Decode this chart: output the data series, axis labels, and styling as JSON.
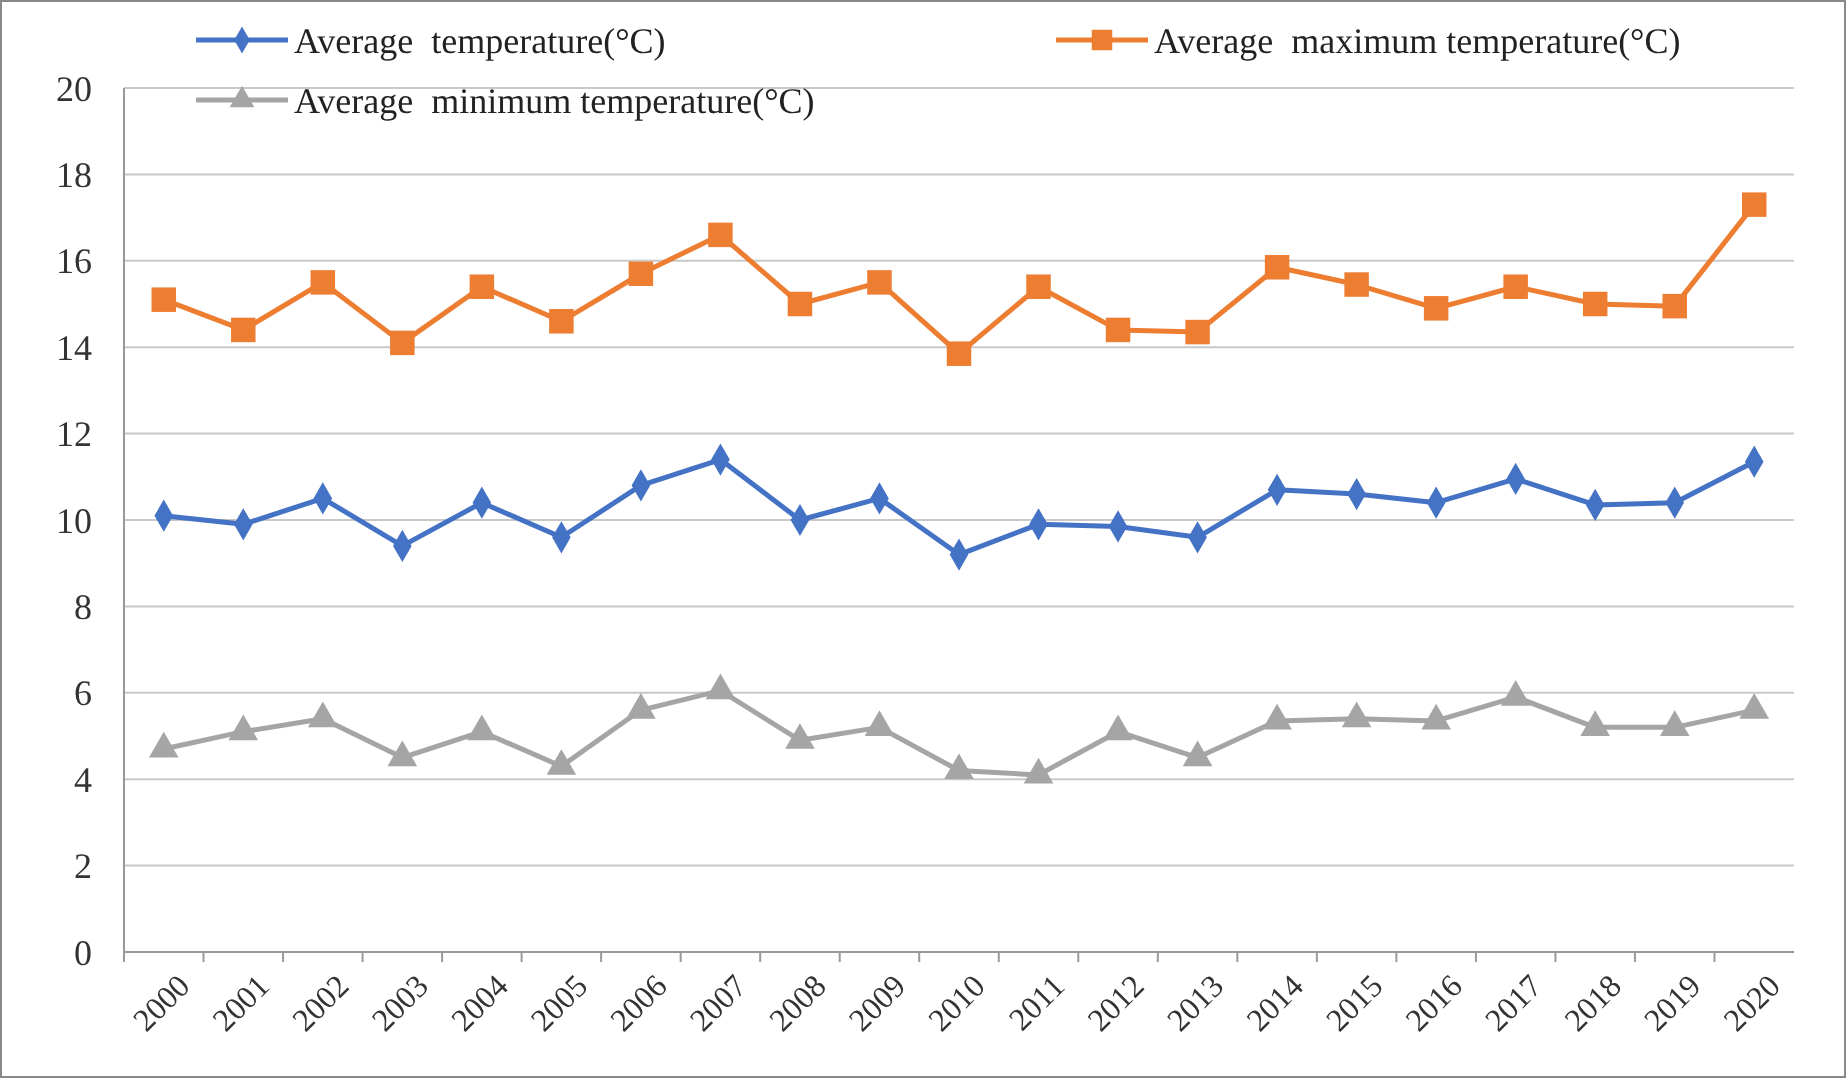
{
  "chart_data": {
    "type": "line",
    "categories": [
      "2000",
      "2001",
      "2002",
      "2003",
      "2004",
      "2005",
      "2006",
      "2007",
      "2008",
      "2009",
      "2010",
      "2011",
      "2012",
      "2013",
      "2014",
      "2015",
      "2016",
      "2017",
      "2018",
      "2019",
      "2020"
    ],
    "series": [
      {
        "name": "Average  temperature(°C)",
        "color": "#4472c4",
        "marker": "diamond",
        "values": [
          10.1,
          9.9,
          10.5,
          9.4,
          10.4,
          9.6,
          10.8,
          11.4,
          10.0,
          10.5,
          9.2,
          9.9,
          9.85,
          9.6,
          10.7,
          10.6,
          10.4,
          10.95,
          10.35,
          10.4,
          11.35
        ]
      },
      {
        "name": "Average  maximum temperature(°C)",
        "color": "#ed7d31",
        "marker": "square",
        "values": [
          15.1,
          14.4,
          15.5,
          14.1,
          15.4,
          14.6,
          15.7,
          16.6,
          15.0,
          15.5,
          13.85,
          15.4,
          14.4,
          14.35,
          15.85,
          15.45,
          14.9,
          15.4,
          15.0,
          14.95,
          17.3
        ]
      },
      {
        "name": "Average  minimum temperature(°C)",
        "color": "#a5a5a5",
        "marker": "triangle",
        "values": [
          4.7,
          5.1,
          5.4,
          4.5,
          5.1,
          4.3,
          5.6,
          6.05,
          4.9,
          5.2,
          4.2,
          4.1,
          5.1,
          4.5,
          5.35,
          5.4,
          5.35,
          5.9,
          5.2,
          5.2,
          5.6
        ]
      }
    ],
    "ylim": [
      0,
      20
    ],
    "yticks": [
      0,
      2,
      4,
      6,
      8,
      10,
      12,
      14,
      16,
      18,
      20
    ],
    "grid": "y",
    "legend": "top",
    "line_style": "solid"
  }
}
